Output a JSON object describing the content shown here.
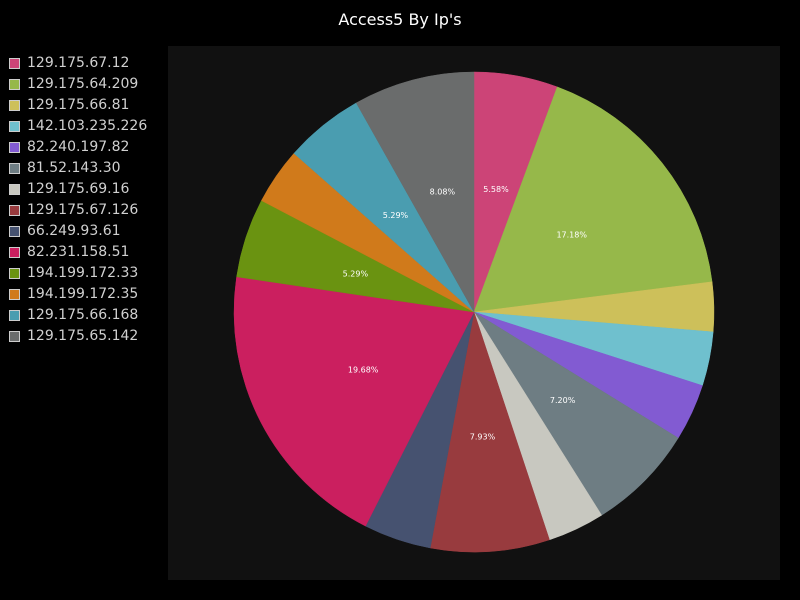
{
  "chart_data": {
    "type": "pie",
    "title": "Access5 By Ip's",
    "legend_position": "left",
    "slices": [
      {
        "label": "129.175.67.12",
        "value": 5.58,
        "display": "5.58%",
        "color": "#cc4477"
      },
      {
        "label": "129.175.64.209",
        "value": 17.18,
        "display": "17.18%",
        "color": "#96b84a"
      },
      {
        "label": "129.175.66.81",
        "value": 3.3,
        "display": "",
        "color": "#cdc05a"
      },
      {
        "label": "142.103.235.226",
        "value": 3.6,
        "display": "",
        "color": "#6fc0ce"
      },
      {
        "label": "82.240.197.82",
        "value": 3.8,
        "display": "",
        "color": "#825bd2"
      },
      {
        "label": "81.52.143.30",
        "value": 7.2,
        "display": "7.20%",
        "color": "#6e7d83"
      },
      {
        "label": "129.175.69.16",
        "value": 3.8,
        "display": "",
        "color": "#c8c8c0"
      },
      {
        "label": "129.175.67.126",
        "value": 7.93,
        "display": "7.93%",
        "color": "#983b3e"
      },
      {
        "label": "66.249.93.61",
        "value": 4.5,
        "display": "",
        "color": "#465270"
      },
      {
        "label": "82.231.158.51",
        "value": 19.68,
        "display": "19.68%",
        "color": "#cb1f5f"
      },
      {
        "label": "194.199.172.33",
        "value": 5.29,
        "display": "5.29%",
        "color": "#6a9311"
      },
      {
        "label": "194.199.172.35",
        "value": 3.77,
        "display": "",
        "color": "#d07a1b"
      },
      {
        "label": "129.175.66.168",
        "value": 5.29,
        "display": "5.29%",
        "color": "#4a9db0"
      },
      {
        "label": "129.175.65.142",
        "value": 8.08,
        "display": "8.08%",
        "color": "#6a6c6c"
      }
    ]
  }
}
